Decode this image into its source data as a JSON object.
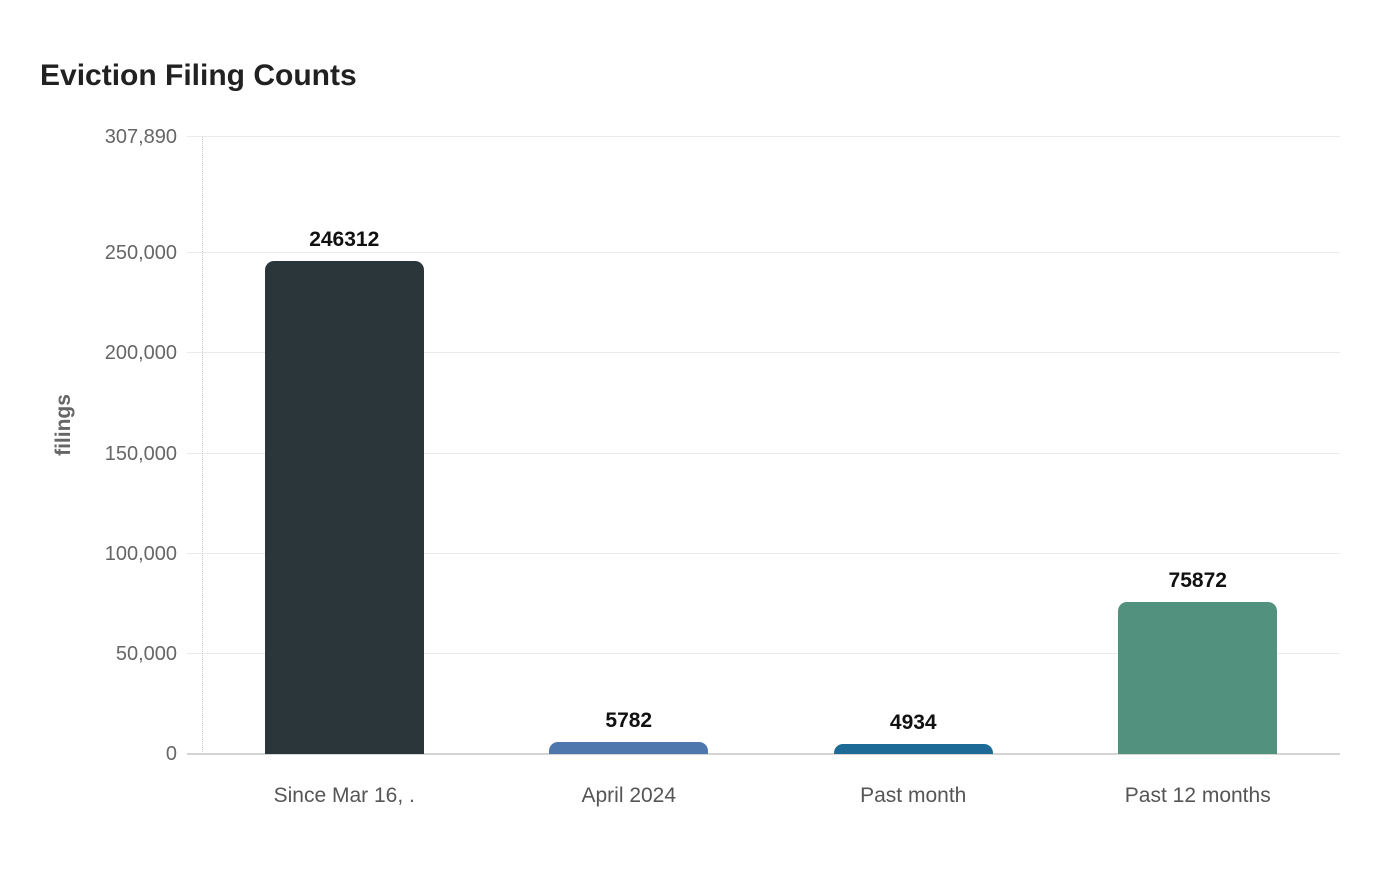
{
  "chart_data": {
    "type": "bar",
    "title": "Eviction Filing Counts",
    "xlabel": "",
    "ylabel": "filings",
    "categories": [
      "Since Mar 16, .",
      "April 2024",
      "Past month",
      "Past 12 months"
    ],
    "values": [
      246312,
      5782,
      4934,
      75872
    ],
    "bar_labels": [
      "246312",
      "5782",
      "4934",
      "75872"
    ],
    "bar_colors": [
      "#2b363b",
      "#4e77ad",
      "#1e6a96",
      "#52917e"
    ],
    "y_ticks": [
      {
        "value": 307890,
        "label": "307,890"
      },
      {
        "value": 250000,
        "label": "250,000"
      },
      {
        "value": 200000,
        "label": "200,000"
      },
      {
        "value": 150000,
        "label": "150,000"
      },
      {
        "value": 100000,
        "label": "100,000"
      },
      {
        "value": 50000,
        "label": "50,000"
      },
      {
        "value": 0,
        "label": "0"
      }
    ],
    "ylim": [
      0,
      307890
    ],
    "grid": true,
    "legend": false
  },
  "style": {
    "background": "#ffffff",
    "title_color": "#212121",
    "ylabel_color": "#666666",
    "tick_label_color": "#666666",
    "category_label_color": "#555555",
    "value_label_color": "#111111",
    "grid_color": "#ebebeb",
    "baseline_color": "#d4d4d4",
    "yaxis_line_color": "#c9c9c9"
  }
}
